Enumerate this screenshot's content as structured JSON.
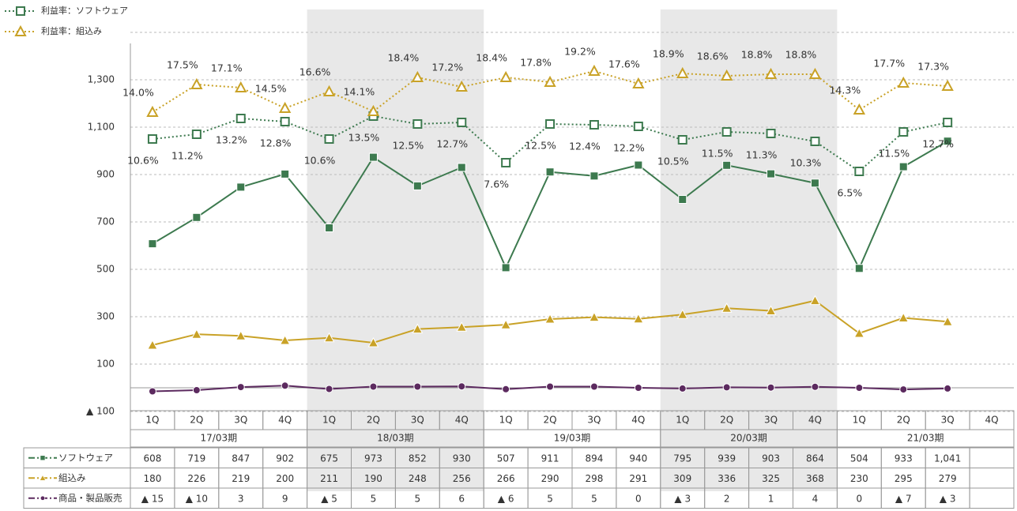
{
  "chart_data": {
    "type": "line",
    "categories": [
      "1Q",
      "2Q",
      "3Q",
      "4Q",
      "1Q",
      "2Q",
      "3Q",
      "4Q",
      "1Q",
      "2Q",
      "3Q",
      "4Q",
      "1Q",
      "2Q",
      "3Q",
      "4Q",
      "1Q",
      "2Q",
      "3Q",
      "4Q"
    ],
    "groups": [
      "17/03期",
      "18/03期",
      "19/03期",
      "20/03期",
      "21/03期"
    ],
    "ylim": [
      -100,
      1500
    ],
    "yticks": [
      {
        "value": 1300,
        "label": "1,300"
      },
      {
        "value": 1100,
        "label": "1,100"
      },
      900,
      700,
      500,
      300,
      100,
      {
        "value": -100,
        "label": "▲ 100"
      }
    ],
    "y2lim": [
      -23.9,
      24.1
    ],
    "grid": true,
    "series": [
      {
        "name": "ソフトウェア",
        "color": "#3d7a4f",
        "marker": "square",
        "values": [
          608,
          719,
          847,
          902,
          675,
          973,
          852,
          930,
          507,
          911,
          894,
          940,
          795,
          939,
          903,
          864,
          504,
          933,
          1041,
          null
        ],
        "value_labels": [
          "608",
          "719",
          "847",
          "902",
          "675",
          "973",
          "852",
          "930",
          "507",
          "911",
          "894",
          "940",
          "795",
          "939",
          "903",
          "864",
          "504",
          "933",
          "1,041",
          null
        ]
      },
      {
        "name": "組込み",
        "color": "#c9a227",
        "marker": "triangle",
        "values": [
          180,
          226,
          219,
          200,
          211,
          190,
          248,
          256,
          266,
          290,
          298,
          291,
          309,
          336,
          325,
          368,
          230,
          295,
          279,
          null
        ],
        "value_labels": [
          "180",
          "226",
          "219",
          "200",
          "211",
          "190",
          "248",
          "256",
          "266",
          "290",
          "298",
          "291",
          "309",
          "336",
          "325",
          "368",
          "230",
          "295",
          "279",
          null
        ]
      },
      {
        "name": "商品・製品販売",
        "color": "#5c2a5f",
        "marker": "circle",
        "values": [
          -15,
          -10,
          3,
          9,
          -5,
          5,
          5,
          6,
          -6,
          5,
          5,
          0,
          -3,
          2,
          1,
          4,
          0,
          -7,
          -3,
          null
        ],
        "value_labels": [
          "▲ 15",
          "▲ 10",
          "3",
          "9",
          "▲ 5",
          "5",
          "5",
          "6",
          "▲ 6",
          "5",
          "5",
          "0",
          "▲ 3",
          "2",
          "1",
          "4",
          "0",
          "▲ 7",
          "▲ 3",
          null
        ]
      },
      {
        "name": "利益率：ソフトウェア",
        "color": "#3d7a4f",
        "marker": "square-open",
        "axis": "y2",
        "dotted": true,
        "values": [
          10.6,
          11.2,
          13.2,
          12.8,
          10.6,
          13.5,
          12.5,
          12.7,
          7.6,
          12.5,
          12.4,
          12.2,
          10.5,
          11.5,
          11.3,
          10.3,
          6.5,
          11.5,
          12.7,
          null
        ],
        "value_labels": [
          "10.6%",
          "11.2%",
          "13.2%",
          "12.8%",
          "10.6%",
          "13.5%",
          "12.5%",
          "12.7%",
          "7.6%",
          "12.5%",
          "12.4%",
          "12.2%",
          "10.5%",
          "11.5%",
          "11.3%",
          "10.3%",
          "6.5%",
          "11.5%",
          "12.7%",
          null
        ]
      },
      {
        "name": "利益率：組込み",
        "color": "#c9a227",
        "marker": "triangle-open",
        "axis": "y2",
        "dotted": true,
        "values": [
          14.0,
          17.5,
          17.1,
          14.5,
          16.6,
          14.1,
          18.4,
          17.2,
          18.4,
          17.8,
          19.2,
          17.6,
          18.9,
          18.6,
          18.8,
          18.8,
          14.3,
          17.7,
          17.3,
          null
        ],
        "value_labels": [
          "14.0%",
          "17.5%",
          "17.1%",
          "14.5%",
          "16.6%",
          "14.1%",
          "18.4%",
          "17.2%",
          "18.4%",
          "17.8%",
          "19.2%",
          "17.6%",
          "18.9%",
          "18.6%",
          "18.8%",
          "18.8%",
          "14.3%",
          "17.7%",
          "17.3%",
          null
        ]
      }
    ]
  }
}
